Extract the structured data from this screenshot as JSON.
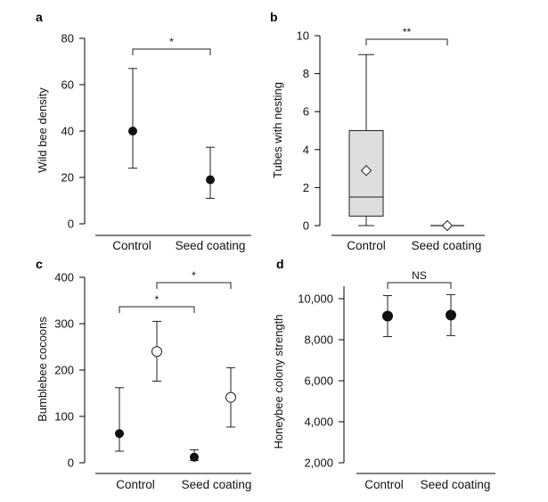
{
  "chart_data": [
    {
      "panel": "a",
      "type": "scatter",
      "ylabel": "Wild bee density",
      "categories": [
        "Control",
        "Seed coating"
      ],
      "ylim": [
        0,
        80
      ],
      "yticks": [
        0,
        20,
        40,
        60,
        80
      ],
      "ytick_labels": [
        "0",
        "20",
        "40",
        "60",
        "80"
      ],
      "points": [
        {
          "category": "Control",
          "value": 40,
          "lower": 24,
          "upper": 67,
          "marker": "filled-circle"
        },
        {
          "category": "Seed coating",
          "value": 19,
          "lower": 11,
          "upper": 33,
          "marker": "filled-circle"
        }
      ],
      "annotations": [
        {
          "text": "*",
          "from": "Control",
          "to": "Seed coating"
        }
      ]
    },
    {
      "panel": "b",
      "type": "box",
      "ylabel": "Tubes with nesting",
      "categories": [
        "Control",
        "Seed coating"
      ],
      "ylim": [
        0,
        10
      ],
      "yticks": [
        0,
        2,
        4,
        6,
        8,
        10
      ],
      "ytick_labels": [
        "0",
        "2",
        "4",
        "6",
        "8",
        "10"
      ],
      "boxes": [
        {
          "category": "Control",
          "min": 0,
          "q1": 0.5,
          "median": 1.5,
          "q3": 5,
          "max": 9,
          "mean": 2.9
        },
        {
          "category": "Seed coating",
          "min": 0,
          "q1": 0,
          "median": 0,
          "q3": 0,
          "max": 0,
          "mean": 0
        }
      ],
      "annotations": [
        {
          "text": "**",
          "from": "Control",
          "to": "Seed coating"
        }
      ]
    },
    {
      "panel": "c",
      "type": "scatter",
      "ylabel": "Bumblebee cocoons",
      "categories": [
        "Control",
        "Seed coating"
      ],
      "ylim": [
        0,
        400
      ],
      "yticks": [
        0,
        100,
        200,
        300,
        400
      ],
      "ytick_labels": [
        "0",
        "100",
        "200",
        "300",
        "400"
      ],
      "series": [
        {
          "name": "filled",
          "marker": "filled-circle",
          "points": [
            {
              "category": "Control",
              "value": 63,
              "lower": 25,
              "upper": 162
            },
            {
              "category": "Seed coating",
              "value": 12,
              "lower": 5,
              "upper": 28
            }
          ]
        },
        {
          "name": "open",
          "marker": "open-circle",
          "points": [
            {
              "category": "Control",
              "value": 240,
              "lower": 176,
              "upper": 305
            },
            {
              "category": "Seed coating",
              "value": 141,
              "lower": 77,
              "upper": 205
            }
          ]
        }
      ],
      "annotations": [
        {
          "text": "*",
          "from": "Control filled",
          "to": "Seed coating filled"
        },
        {
          "text": "*",
          "from": "Control open",
          "to": "Seed coating open"
        }
      ]
    },
    {
      "panel": "d",
      "type": "scatter",
      "ylabel": "Honeybee colony strength",
      "categories": [
        "Control",
        "Seed coating"
      ],
      "ylim": [
        1800,
        11000
      ],
      "yticks": [
        2000,
        4000,
        6000,
        8000,
        10000
      ],
      "ytick_labels": [
        "2,000",
        "4,000",
        "6,000",
        "8,000",
        "10,000"
      ],
      "points": [
        {
          "category": "Control",
          "value": 9150,
          "lower": 8150,
          "upper": 10150,
          "marker": "filled-circle"
        },
        {
          "category": "Seed coating",
          "value": 9200,
          "lower": 8200,
          "upper": 10200,
          "marker": "filled-circle"
        }
      ],
      "annotations": [
        {
          "text": "NS",
          "from": "Control",
          "to": "Seed coating"
        }
      ]
    }
  ]
}
